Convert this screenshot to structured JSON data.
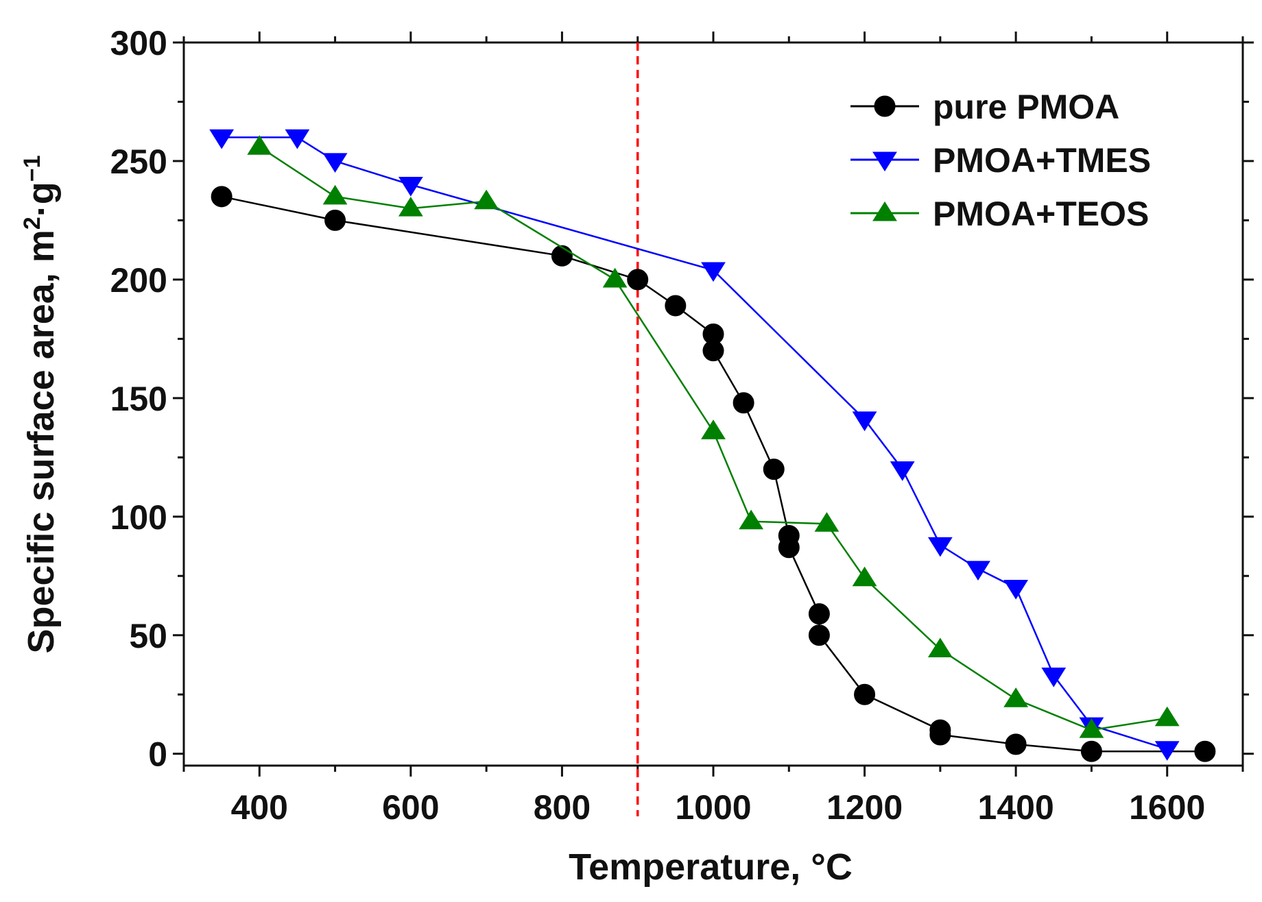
{
  "chart_data": {
    "type": "line",
    "title": "",
    "xlabel": "Temperature, °C",
    "ylabel": {
      "main": "Specific surface area, m",
      "sup1": "2",
      "mid": "·g",
      "sup2": "−1"
    },
    "xlim": [
      300,
      1700
    ],
    "ylim": [
      -5,
      300
    ],
    "xticks": [
      400,
      600,
      800,
      1000,
      1200,
      1400,
      1600
    ],
    "yticks": [
      0,
      50,
      100,
      150,
      200,
      250,
      300
    ],
    "grid": false,
    "legend_position": "top-right",
    "reference_line": {
      "x": 900,
      "color": "#ff0000",
      "style": "dashed"
    },
    "series": [
      {
        "name": "pure PMOA",
        "color": "#000000",
        "marker": "circle",
        "x": [
          350,
          500,
          800,
          900,
          950,
          1000,
          1000,
          1040,
          1080,
          1100,
          1100,
          1140,
          1140,
          1200,
          1300,
          1300,
          1400,
          1500,
          1650
        ],
        "y": [
          235,
          225,
          210,
          200,
          189,
          177,
          170,
          148,
          120,
          92,
          87,
          59,
          50,
          25,
          10,
          8,
          4,
          1,
          1
        ]
      },
      {
        "name": "PMOA+TMES",
        "color": "#0000ff",
        "marker": "triangle-down",
        "x": [
          350,
          450,
          500,
          600,
          1000,
          1200,
          1250,
          1300,
          1350,
          1400,
          1450,
          1500,
          1600
        ],
        "y": [
          260,
          260,
          250,
          240,
          204,
          141,
          120,
          88,
          78,
          70,
          33,
          12,
          2
        ]
      },
      {
        "name": "PMOA+TEOS",
        "color": "#008000",
        "marker": "triangle-up",
        "x": [
          400,
          500,
          600,
          700,
          870,
          1000,
          1050,
          1150,
          1200,
          1300,
          1400,
          1500,
          1600
        ],
        "y": [
          256,
          235,
          230,
          233,
          200,
          136,
          98,
          97,
          74,
          44,
          23,
          10,
          15
        ]
      }
    ]
  }
}
